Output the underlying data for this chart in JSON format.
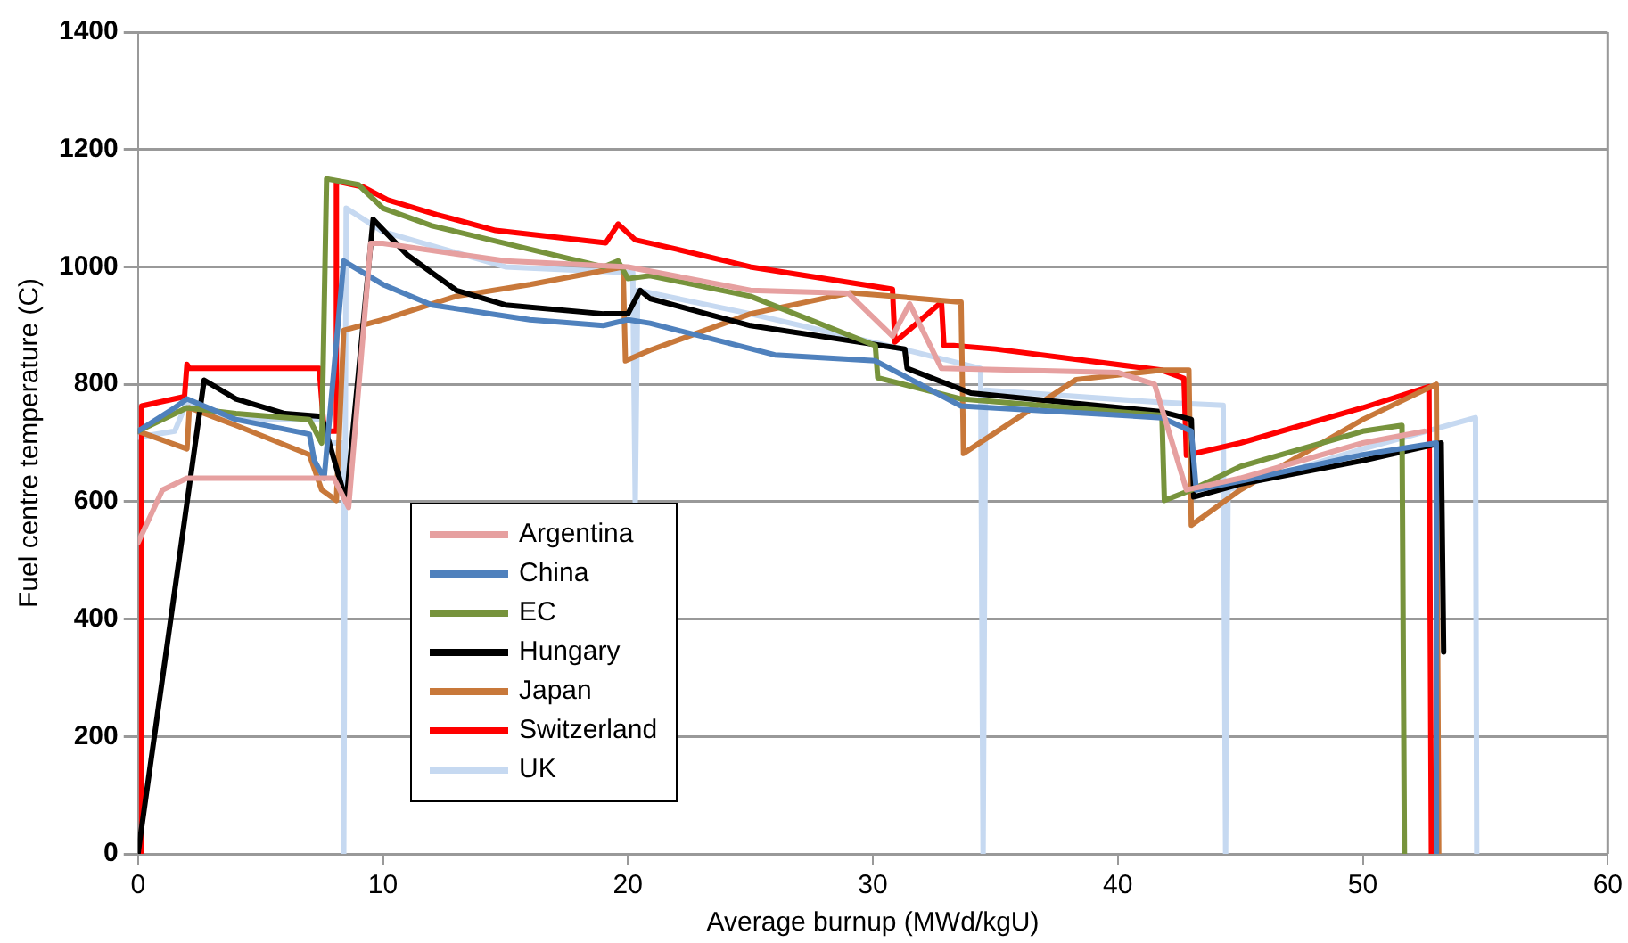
{
  "chart_data": {
    "type": "line",
    "xlabel": "Average burnup (MWd/kgU)",
    "ylabel": "Fuel centre temperature (C)",
    "xlim": [
      0,
      60
    ],
    "xticks": [
      0,
      10,
      20,
      30,
      40,
      50,
      60
    ],
    "ylim": [
      0,
      1400
    ],
    "yticks": [
      0,
      200,
      400,
      600,
      800,
      1000,
      1200,
      1400
    ],
    "grid": "y",
    "legend": "bottom left",
    "marker": "none",
    "line_style": "solid",
    "series": [
      {
        "name": "Argentina",
        "color": "#e6a0a0",
        "x": [
          0,
          1,
          2,
          8,
          8.6,
          9.5,
          10,
          15,
          20,
          25,
          29,
          30.8,
          31.5,
          32.8,
          40,
          41.5,
          42.8,
          45,
          50,
          52.5
        ],
        "values": [
          530,
          620,
          640,
          640,
          590,
          1040,
          1040,
          1010,
          1000,
          960,
          955,
          882,
          937,
          827,
          820,
          800,
          620,
          640,
          700,
          720
        ]
      },
      {
        "name": "China",
        "color": "#4f81bd",
        "x": [
          0,
          1.5,
          2,
          4,
          7,
          7.2,
          7.6,
          8.4,
          10,
          12,
          16,
          19,
          20,
          20.9,
          26,
          30.1,
          33.6,
          41.8,
          43,
          43.2,
          45,
          50,
          53,
          53
        ],
        "values": [
          720,
          760,
          775,
          740,
          715,
          670,
          640,
          1010,
          970,
          935,
          910,
          900,
          910,
          904,
          850,
          840,
          763,
          743,
          720,
          620,
          635,
          680,
          700,
          0
        ]
      },
      {
        "name": "EC",
        "color": "#77933c",
        "x": [
          0,
          2,
          4,
          7,
          7.5,
          7.7,
          9,
          10,
          12,
          15,
          19,
          19.6,
          20,
          20.9,
          25,
          30.1,
          30.2,
          33.6,
          41.8,
          41.9,
          43,
          45,
          50,
          51.6,
          51.7
        ],
        "values": [
          720,
          760,
          750,
          740,
          700,
          1150,
          1140,
          1100,
          1070,
          1040,
          1000,
          1010,
          980,
          985,
          950,
          866,
          811,
          775,
          747,
          602,
          620,
          660,
          720,
          730,
          0
        ]
      },
      {
        "name": "Hungary",
        "color": "#000000",
        "x": [
          0,
          2.7,
          4,
          6,
          7.5,
          8.5,
          9.6,
          11,
          13,
          15,
          19,
          20,
          20.5,
          20.9,
          25,
          31.3,
          31.4,
          34,
          41.8,
          43,
          43.1,
          45,
          50,
          53.2,
          53.3
        ],
        "values": [
          0,
          807,
          775,
          750,
          745,
          600,
          1081,
          1020,
          960,
          935,
          920,
          920,
          960,
          946,
          900,
          860,
          827,
          785,
          753,
          740,
          608,
          630,
          670,
          700,
          344
        ]
      },
      {
        "name": "Japan",
        "color": "#c8783a",
        "x": [
          0,
          2,
          2.1,
          4,
          7,
          7.5,
          8.1,
          8.4,
          10,
          13,
          16,
          19.8,
          19.9,
          20.9,
          25,
          29.1,
          33.6,
          33.7,
          38.3,
          41.8,
          42.9,
          43,
          45,
          50,
          53,
          53.1
        ],
        "values": [
          720,
          690,
          760,
          730,
          680,
          620,
          602,
          892,
          910,
          950,
          970,
          1000,
          840,
          858,
          920,
          956,
          940,
          682,
          808,
          824,
          824,
          560,
          620,
          740,
          800,
          0
        ]
      },
      {
        "name": "Switzerland",
        "color": "#ff0000",
        "x": [
          0.15,
          0.15,
          1.9,
          2,
          2.1,
          7.4,
          7.6,
          8.1,
          8.1,
          9.2,
          10.2,
          12.2,
          14.6,
          19.1,
          19.6,
          20.3,
          22,
          25,
          30.8,
          30.9,
          32.8,
          32.9,
          33.3,
          35,
          41.8,
          42.7,
          42.8,
          45,
          50,
          52.7,
          52.8
        ],
        "values": [
          0,
          763,
          779,
          834,
          827,
          827,
          720,
          720,
          1146,
          1136,
          1114,
          1089,
          1062,
          1041,
          1073,
          1046,
          1030,
          1000,
          962,
          872,
          940,
          866,
          866,
          860,
          824,
          810,
          679,
          700,
          760,
          796,
          0
        ]
      },
      {
        "name": "UK",
        "color": "#c6d9f1",
        "x": [
          0,
          1.5,
          2,
          4,
          7.5,
          7.8,
          8.4,
          8.4,
          8.5,
          10,
          15,
          20.2,
          20.3,
          20.4,
          25,
          31.5,
          34.4,
          34.5,
          34.6,
          41.8,
          44.3,
          44.4,
          44.5,
          50,
          54.6,
          54.65
        ],
        "values": [
          710,
          720,
          770,
          740,
          740,
          700,
          700,
          0,
          1100,
          1060,
          1000,
          990,
          600,
          960,
          920,
          857,
          827,
          0,
          790,
          769,
          764,
          0,
          620,
          690,
          743,
          0
        ]
      }
    ]
  }
}
